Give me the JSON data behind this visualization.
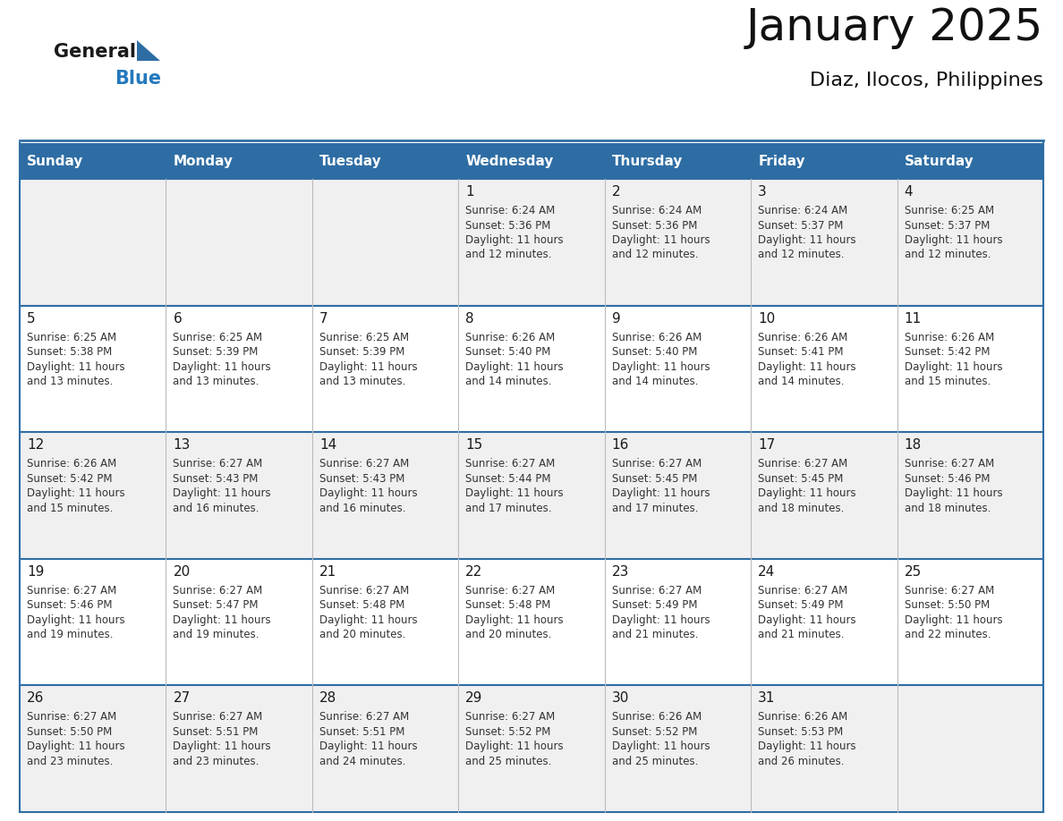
{
  "title": "January 2025",
  "subtitle": "Diaz, Ilocos, Philippines",
  "header_bg": "#2E6DA4",
  "header_text": "#FFFFFF",
  "row_bg_odd": "#F0F0F0",
  "row_bg_even": "#FFFFFF",
  "border_color": "#2E6DA4",
  "days_of_week": [
    "Sunday",
    "Monday",
    "Tuesday",
    "Wednesday",
    "Thursday",
    "Friday",
    "Saturday"
  ],
  "logo_general_color": "#1a1a1a",
  "logo_blue_color": "#2479BD",
  "logo_triangle_color": "#2E6DA4",
  "cell_text_color": "#333333",
  "day_num_color": "#1a1a1a",
  "calendar_data": [
    [
      null,
      null,
      null,
      {
        "day": 1,
        "sunrise": "6:24 AM",
        "sunset": "5:36 PM",
        "daylight_h": "11 hours",
        "daylight_m": "and 12 minutes."
      },
      {
        "day": 2,
        "sunrise": "6:24 AM",
        "sunset": "5:36 PM",
        "daylight_h": "11 hours",
        "daylight_m": "and 12 minutes."
      },
      {
        "day": 3,
        "sunrise": "6:24 AM",
        "sunset": "5:37 PM",
        "daylight_h": "11 hours",
        "daylight_m": "and 12 minutes."
      },
      {
        "day": 4,
        "sunrise": "6:25 AM",
        "sunset": "5:37 PM",
        "daylight_h": "11 hours",
        "daylight_m": "and 12 minutes."
      }
    ],
    [
      {
        "day": 5,
        "sunrise": "6:25 AM",
        "sunset": "5:38 PM",
        "daylight_h": "11 hours",
        "daylight_m": "and 13 minutes."
      },
      {
        "day": 6,
        "sunrise": "6:25 AM",
        "sunset": "5:39 PM",
        "daylight_h": "11 hours",
        "daylight_m": "and 13 minutes."
      },
      {
        "day": 7,
        "sunrise": "6:25 AM",
        "sunset": "5:39 PM",
        "daylight_h": "11 hours",
        "daylight_m": "and 13 minutes."
      },
      {
        "day": 8,
        "sunrise": "6:26 AM",
        "sunset": "5:40 PM",
        "daylight_h": "11 hours",
        "daylight_m": "and 14 minutes."
      },
      {
        "day": 9,
        "sunrise": "6:26 AM",
        "sunset": "5:40 PM",
        "daylight_h": "11 hours",
        "daylight_m": "and 14 minutes."
      },
      {
        "day": 10,
        "sunrise": "6:26 AM",
        "sunset": "5:41 PM",
        "daylight_h": "11 hours",
        "daylight_m": "and 14 minutes."
      },
      {
        "day": 11,
        "sunrise": "6:26 AM",
        "sunset": "5:42 PM",
        "daylight_h": "11 hours",
        "daylight_m": "and 15 minutes."
      }
    ],
    [
      {
        "day": 12,
        "sunrise": "6:26 AM",
        "sunset": "5:42 PM",
        "daylight_h": "11 hours",
        "daylight_m": "and 15 minutes."
      },
      {
        "day": 13,
        "sunrise": "6:27 AM",
        "sunset": "5:43 PM",
        "daylight_h": "11 hours",
        "daylight_m": "and 16 minutes."
      },
      {
        "day": 14,
        "sunrise": "6:27 AM",
        "sunset": "5:43 PM",
        "daylight_h": "11 hours",
        "daylight_m": "and 16 minutes."
      },
      {
        "day": 15,
        "sunrise": "6:27 AM",
        "sunset": "5:44 PM",
        "daylight_h": "11 hours",
        "daylight_m": "and 17 minutes."
      },
      {
        "day": 16,
        "sunrise": "6:27 AM",
        "sunset": "5:45 PM",
        "daylight_h": "11 hours",
        "daylight_m": "and 17 minutes."
      },
      {
        "day": 17,
        "sunrise": "6:27 AM",
        "sunset": "5:45 PM",
        "daylight_h": "11 hours",
        "daylight_m": "and 18 minutes."
      },
      {
        "day": 18,
        "sunrise": "6:27 AM",
        "sunset": "5:46 PM",
        "daylight_h": "11 hours",
        "daylight_m": "and 18 minutes."
      }
    ],
    [
      {
        "day": 19,
        "sunrise": "6:27 AM",
        "sunset": "5:46 PM",
        "daylight_h": "11 hours",
        "daylight_m": "and 19 minutes."
      },
      {
        "day": 20,
        "sunrise": "6:27 AM",
        "sunset": "5:47 PM",
        "daylight_h": "11 hours",
        "daylight_m": "and 19 minutes."
      },
      {
        "day": 21,
        "sunrise": "6:27 AM",
        "sunset": "5:48 PM",
        "daylight_h": "11 hours",
        "daylight_m": "and 20 minutes."
      },
      {
        "day": 22,
        "sunrise": "6:27 AM",
        "sunset": "5:48 PM",
        "daylight_h": "11 hours",
        "daylight_m": "and 20 minutes."
      },
      {
        "day": 23,
        "sunrise": "6:27 AM",
        "sunset": "5:49 PM",
        "daylight_h": "11 hours",
        "daylight_m": "and 21 minutes."
      },
      {
        "day": 24,
        "sunrise": "6:27 AM",
        "sunset": "5:49 PM",
        "daylight_h": "11 hours",
        "daylight_m": "and 21 minutes."
      },
      {
        "day": 25,
        "sunrise": "6:27 AM",
        "sunset": "5:50 PM",
        "daylight_h": "11 hours",
        "daylight_m": "and 22 minutes."
      }
    ],
    [
      {
        "day": 26,
        "sunrise": "6:27 AM",
        "sunset": "5:50 PM",
        "daylight_h": "11 hours",
        "daylight_m": "and 23 minutes."
      },
      {
        "day": 27,
        "sunrise": "6:27 AM",
        "sunset": "5:51 PM",
        "daylight_h": "11 hours",
        "daylight_m": "and 23 minutes."
      },
      {
        "day": 28,
        "sunrise": "6:27 AM",
        "sunset": "5:51 PM",
        "daylight_h": "11 hours",
        "daylight_m": "and 24 minutes."
      },
      {
        "day": 29,
        "sunrise": "6:27 AM",
        "sunset": "5:52 PM",
        "daylight_h": "11 hours",
        "daylight_m": "and 25 minutes."
      },
      {
        "day": 30,
        "sunrise": "6:26 AM",
        "sunset": "5:52 PM",
        "daylight_h": "11 hours",
        "daylight_m": "and 25 minutes."
      },
      {
        "day": 31,
        "sunrise": "6:26 AM",
        "sunset": "5:53 PM",
        "daylight_h": "11 hours",
        "daylight_m": "and 26 minutes."
      },
      null
    ]
  ]
}
